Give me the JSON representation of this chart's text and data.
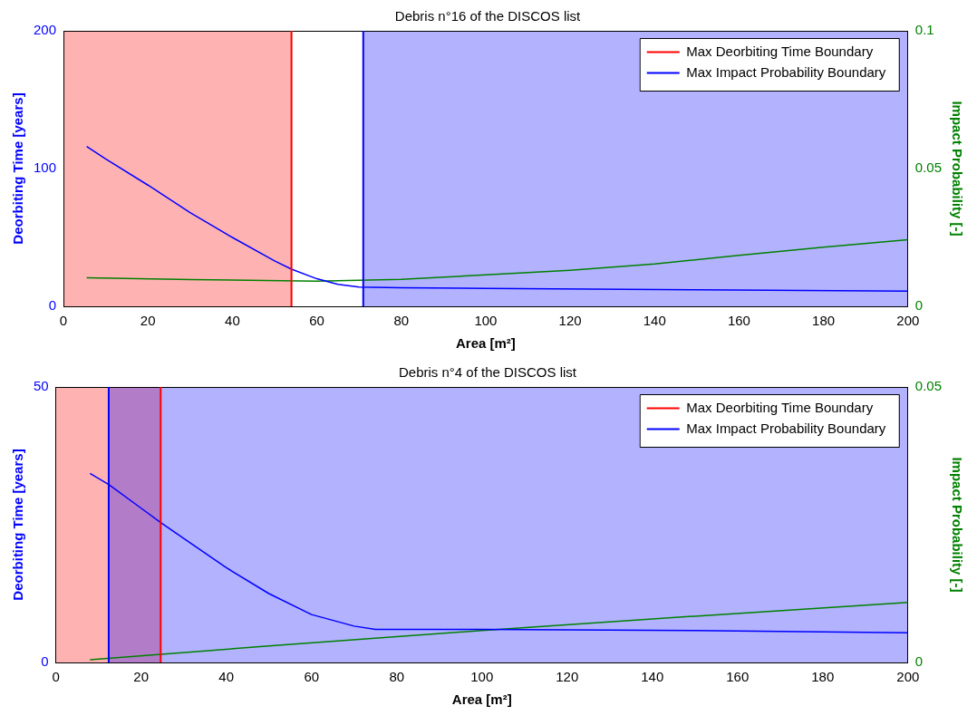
{
  "chart_data": [
    {
      "type": "line",
      "title": "Debris n°16 of the DISCOS list",
      "xlabel": "Area [m²]",
      "ylabel": "Deorbiting Time [years]",
      "y2label": "Impact Probability [-]",
      "xlim": [
        0,
        200
      ],
      "xticks": [
        0,
        20,
        40,
        60,
        80,
        100,
        120,
        140,
        160,
        180,
        200
      ],
      "ylim": [
        0,
        200
      ],
      "yticks": [
        0,
        100,
        200
      ],
      "y2lim": [
        0,
        0.1
      ],
      "y2ticks": [
        0,
        0.05,
        0.1
      ],
      "series": [
        {
          "name": "Max Deorbiting Time Boundary",
          "color": "#ff0000",
          "x": [
            54,
            54
          ],
          "values": [
            0,
            200
          ]
        },
        {
          "name": "Max Impact Probability Boundary",
          "color": "#0000ff",
          "x": [
            71,
            71
          ],
          "values": [
            0,
            200
          ]
        },
        {
          "color": "#0000ff",
          "x": [
            5.5,
            10,
            20,
            30,
            40,
            50,
            54,
            60,
            65,
            70,
            80,
            100,
            150,
            200
          ],
          "values": [
            116,
            107,
            88,
            68,
            50,
            33,
            27,
            20,
            16,
            14,
            13.5,
            13,
            12,
            11
          ]
        },
        {
          "color": "#008000",
          "axis": "y2",
          "x": [
            5.5,
            30,
            60,
            80,
            100,
            120,
            140,
            160,
            180,
            200
          ],
          "values": [
            0.0104,
            0.0097,
            0.0091,
            0.0098,
            0.0114,
            0.0131,
            0.0154,
            0.0185,
            0.0215,
            0.0242
          ]
        }
      ],
      "bands": [
        {
          "axis": "x",
          "from": 0,
          "to": 54,
          "color": "#ff0000"
        },
        {
          "axis": "x",
          "from": 71,
          "to": 200,
          "color": "#0000ff"
        }
      ],
      "legend": "top right"
    },
    {
      "type": "line",
      "title": "Debris n°4 of the DISCOS list",
      "xlabel": "Area [m²]",
      "ylabel": "Deorbiting Time [years]",
      "y2label": "Impact Probability [-]",
      "xlim": [
        0,
        200
      ],
      "xticks": [
        0,
        20,
        40,
        60,
        80,
        100,
        120,
        140,
        160,
        180,
        200
      ],
      "ylim": [
        0,
        50
      ],
      "yticks": [
        0,
        50
      ],
      "y2lim": [
        0,
        0.05
      ],
      "y2ticks": [
        0,
        0.05
      ],
      "series": [
        {
          "name": "Max Deorbiting Time Boundary",
          "color": "#ff0000",
          "x": [
            24.6,
            24.6
          ],
          "values": [
            0,
            50
          ]
        },
        {
          "name": "Max Impact Probability Boundary",
          "color": "#0000ff",
          "x": [
            12.4,
            12.4
          ],
          "values": [
            0,
            50
          ]
        },
        {
          "color": "#0000ff",
          "x": [
            8,
            12.4,
            20,
            24.6,
            30,
            40,
            50,
            60,
            70,
            75,
            100,
            150,
            200
          ],
          "values": [
            34.3,
            32.3,
            28,
            25.4,
            22.5,
            17.2,
            12.5,
            8.7,
            6.6,
            6,
            6,
            5.8,
            5.4
          ]
        },
        {
          "color": "#008000",
          "axis": "y2",
          "x": [
            8,
            50,
            100,
            150,
            200
          ],
          "values": [
            0.0005,
            0.003,
            0.0058,
            0.0084,
            0.0109
          ]
        }
      ],
      "bands": [
        {
          "axis": "x",
          "from": 0,
          "to": 24.6,
          "color": "#ff0000"
        },
        {
          "axis": "x",
          "from": 12.4,
          "to": 200,
          "color": "#0000ff"
        }
      ],
      "legend": "top right"
    }
  ]
}
